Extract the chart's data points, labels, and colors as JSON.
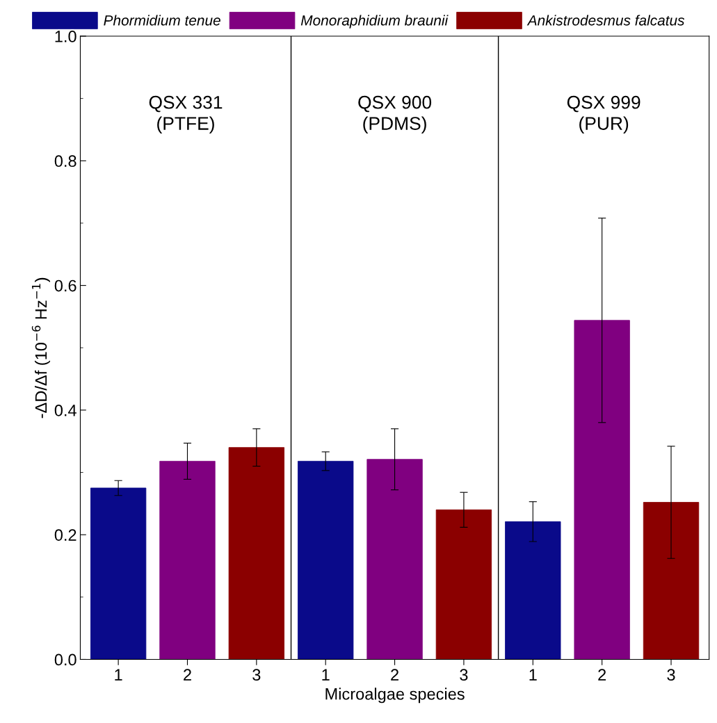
{
  "chart_data": {
    "type": "bar",
    "categories": [
      "1",
      "2",
      "3",
      "1",
      "2",
      "3",
      "1",
      "2",
      "3"
    ],
    "xlabel": "Microalgae species",
    "ylabel": "-ΔD/Δf (10$^{−6}$ Hz$^{−1}$)",
    "ylim": [
      0,
      1.0
    ],
    "yticks": [
      {
        "value": 0,
        "label": "0.0"
      },
      0.2,
      0.4,
      0.6,
      0.8,
      {
        "value": 1.0,
        "label": "1.0"
      }
    ],
    "annotations": [
      "QSX 331\n(PTFE)",
      "QSX 900\n(PDMS)",
      "QSX 999\n(PUR)"
    ],
    "legend": "top",
    "grid": false,
    "series": [
      {
        "name": "Phormidium tenue",
        "color": "#0a0a8a",
        "values": [
          0.275,
          null,
          null,
          0.318,
          null,
          null,
          0.221,
          null,
          null
        ],
        "errors": [
          0.012,
          null,
          null,
          0.015,
          null,
          null,
          0.032,
          null,
          null
        ]
      },
      {
        "name": "Monoraphidium braunii",
        "color": "#800080",
        "values": [
          null,
          0.318,
          null,
          null,
          0.321,
          null,
          null,
          0.544,
          null
        ],
        "errors": [
          null,
          0.029,
          null,
          null,
          0.049,
          null,
          null,
          0.164,
          null
        ]
      },
      {
        "name": "Ankistrodesmus falcatus",
        "color": "#8b0000",
        "values": [
          null,
          null,
          0.34,
          null,
          null,
          0.24,
          null,
          null,
          0.252
        ],
        "errors": [
          null,
          null,
          0.03,
          null,
          null,
          0.028,
          null,
          null,
          0.09
        ]
      }
    ]
  }
}
